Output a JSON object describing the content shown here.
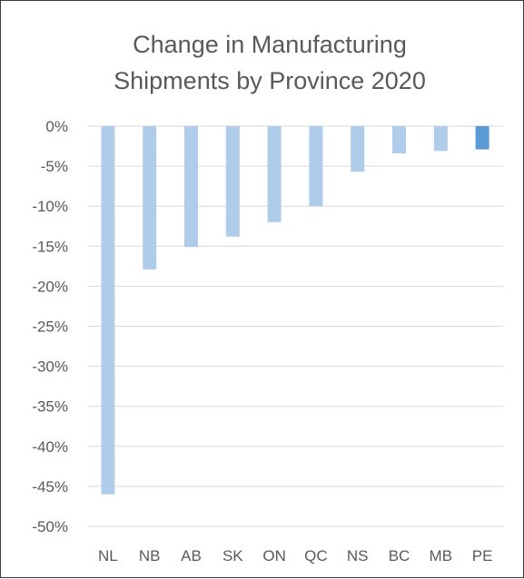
{
  "chart_data": {
    "type": "bar",
    "title": "Change in Manufacturing Shipments by Province 2020",
    "title_lines": [
      "Change in Manufacturing",
      "Shipments by Province 2020"
    ],
    "categories": [
      "NL",
      "NB",
      "AB",
      "SK",
      "ON",
      "QC",
      "NS",
      "BC",
      "MB",
      "PE"
    ],
    "values": [
      -46.0,
      -17.9,
      -15.1,
      -13.8,
      -12.0,
      -10.0,
      -5.7,
      -3.4,
      -3.1,
      -2.9
    ],
    "ylim": [
      -50,
      0
    ],
    "yticks": [
      0,
      -5,
      -10,
      -15,
      -20,
      -25,
      -30,
      -35,
      -40,
      -45,
      -50
    ],
    "ytick_labels": [
      "0%",
      "-5%",
      "-10%",
      "-15%",
      "-20%",
      "-25%",
      "-30%",
      "-35%",
      "-40%",
      "-45%",
      "-50%"
    ],
    "xlabel": "",
    "ylabel": "",
    "grid": true,
    "legend": "none",
    "bar_color": "#afcdea",
    "highlight_category": "PE",
    "highlight_color": "#5b9bd5"
  }
}
